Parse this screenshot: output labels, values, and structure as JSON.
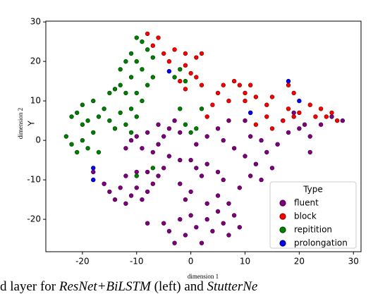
{
  "chart_data": {
    "type": "scatter",
    "xlabel": "dimension 1",
    "ylabel": "Y",
    "ylabel2": "dimension 2",
    "xlim": [
      -26.75,
      31.4
    ],
    "ylim": [
      -28.2,
      30.2
    ],
    "xticks": [
      -20,
      -10,
      0,
      10,
      20,
      30
    ],
    "yticks": [
      -20,
      -10,
      0,
      10,
      20,
      30
    ],
    "legend_title": "Type",
    "legend": "lower right",
    "series": [
      {
        "name": "fluent",
        "color": "#800080",
        "x": [
          -18,
          -16,
          -15,
          -14,
          -13,
          -12,
          -11,
          -10,
          -9,
          -8,
          -7,
          -12,
          -10,
          -8,
          -6,
          -5,
          -9,
          -7,
          -6,
          -5,
          -4,
          -3,
          -2,
          -6,
          -8,
          -10,
          -12,
          -11,
          -4,
          -2,
          0,
          1,
          2,
          3,
          5,
          6,
          -5,
          -4,
          -2,
          -1,
          0,
          1,
          2,
          3,
          4,
          5,
          6,
          7,
          8,
          9,
          7,
          5,
          3,
          0,
          -2,
          -1,
          1,
          3,
          5,
          6,
          8,
          10,
          12,
          14,
          15,
          16,
          13,
          11,
          18,
          20,
          22,
          22,
          17,
          19,
          21,
          24,
          26,
          28,
          9,
          11,
          13,
          10,
          7,
          -3,
          -8
        ],
        "values": [
          -8,
          -11,
          -13,
          -15,
          -12,
          -16,
          -14,
          -12,
          -15,
          -13,
          -11,
          -9,
          -8,
          -8,
          -9,
          -7,
          -2,
          -3,
          -1,
          1,
          3,
          5,
          2,
          4,
          2,
          1,
          -2,
          0,
          -4,
          -5,
          -5,
          -7,
          -9,
          -6,
          -8,
          -10,
          -21,
          -23,
          -20,
          -24,
          -19,
          -22,
          -26,
          -20,
          -23,
          -18,
          -21,
          -24,
          -19,
          -22,
          -16,
          -14,
          -16,
          -13,
          -11,
          -15,
          -1,
          1,
          3,
          0,
          -2,
          -4,
          -6,
          -3,
          -7,
          -1,
          0,
          1,
          2,
          3,
          1,
          -3,
          5,
          7,
          4,
          4,
          6,
          5,
          -12,
          -9,
          -10,
          5,
          5,
          -26,
          -21
        ]
      },
      {
        "name": "block",
        "color": "#ff0000",
        "x": [
          -8,
          -6,
          -7,
          -5,
          -3,
          -1,
          1,
          2,
          -4,
          -1,
          0,
          1,
          -2,
          2,
          -1,
          5,
          7,
          4,
          3,
          6,
          8,
          9,
          10,
          11,
          12,
          10,
          11,
          12,
          14,
          15,
          14,
          17,
          18,
          19,
          18,
          19,
          20,
          23,
          24,
          25,
          26,
          27,
          22,
          15
        ],
        "values": [
          27,
          26,
          24,
          22,
          23,
          22,
          21,
          22,
          20,
          19,
          17,
          16,
          15,
          14,
          13,
          12,
          10,
          9,
          6,
          14,
          15,
          14,
          12,
          14,
          11,
          10,
          7,
          4,
          6,
          11,
          9,
          5,
          8,
          6,
          14,
          12,
          7,
          6,
          8,
          6,
          7,
          5,
          9,
          3
        ]
      },
      {
        "name": "repitition",
        "color": "#008000",
        "x": [
          -10,
          -9,
          -8,
          -11,
          -12,
          -13,
          -10,
          -7,
          -9,
          -7,
          -11,
          -8,
          -13,
          -15,
          -14,
          -12,
          -10,
          -9,
          -11,
          -13,
          -10,
          -12,
          -11,
          -14,
          -15,
          -16,
          -18,
          -20,
          -21,
          -19,
          -22,
          -20,
          -23,
          -22,
          -21,
          -19,
          -17,
          -20,
          -18,
          -17,
          -2,
          -1,
          -3,
          0,
          -1,
          1,
          2,
          -2,
          -7,
          -10
        ],
        "values": [
          26,
          25,
          23,
          22,
          20,
          18,
          20,
          21,
          18,
          16,
          16,
          14,
          14,
          12,
          13,
          12,
          12,
          10,
          8,
          7,
          6,
          4,
          2,
          3,
          5,
          8,
          10,
          9,
          7,
          5,
          6,
          4,
          1,
          -1,
          -3,
          -2,
          -3,
          0,
          2,
          6,
          18,
          15,
          16,
          2,
          4,
          3,
          8,
          8,
          -7,
          -9
        ]
      },
      {
        "name": "prolongation",
        "color": "#0000ff",
        "x": [
          -18,
          -18,
          -4,
          11,
          18,
          20
        ],
        "values": [
          -7,
          -10,
          17.5,
          7,
          15,
          10
        ]
      }
    ],
    "caption": [
      "d layer for ",
      "ResNet+BiLSTM",
      " (left) and ",
      "StutterNe"
    ]
  }
}
